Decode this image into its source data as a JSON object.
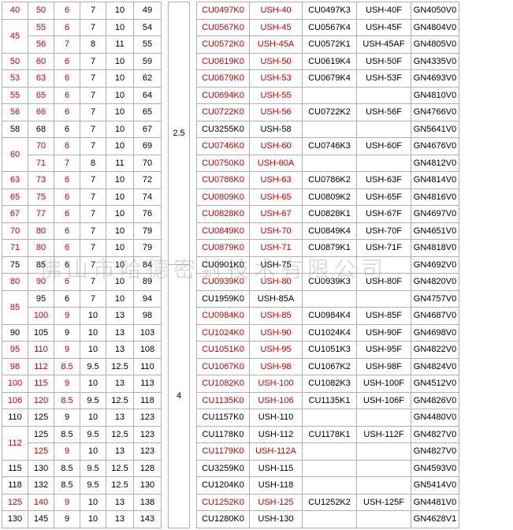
{
  "watermark": "佛山市哈德密封技术有限公司",
  "left_table": {
    "merged0": [
      {
        "start": 0,
        "span": 1,
        "val": "40",
        "red": true
      },
      {
        "start": 1,
        "span": 2,
        "val": "45",
        "red": true
      },
      {
        "start": 3,
        "span": 1,
        "val": "50",
        "red": true
      },
      {
        "start": 4,
        "span": 1,
        "val": "53",
        "red": true
      },
      {
        "start": 5,
        "span": 1,
        "val": "55",
        "red": true
      },
      {
        "start": 6,
        "span": 1,
        "val": "56",
        "red": true
      },
      {
        "start": 7,
        "span": 1,
        "val": "58",
        "red": false
      },
      {
        "start": 8,
        "span": 2,
        "val": "60",
        "red": true
      },
      {
        "start": 10,
        "span": 1,
        "val": "63",
        "red": true
      },
      {
        "start": 11,
        "span": 1,
        "val": "65",
        "red": true
      },
      {
        "start": 12,
        "span": 1,
        "val": "67",
        "red": true
      },
      {
        "start": 13,
        "span": 1,
        "val": "70",
        "red": true
      },
      {
        "start": 14,
        "span": 1,
        "val": "71",
        "red": true
      },
      {
        "start": 15,
        "span": 1,
        "val": "75",
        "red": false
      },
      {
        "start": 16,
        "span": 1,
        "val": "80",
        "red": true
      },
      {
        "start": 17,
        "span": 2,
        "val": "85",
        "red": true
      },
      {
        "start": 19,
        "span": 1,
        "val": "90",
        "red": false
      },
      {
        "start": 20,
        "span": 1,
        "val": "95",
        "red": true
      },
      {
        "start": 21,
        "span": 1,
        "val": "98",
        "red": true
      },
      {
        "start": 22,
        "span": 1,
        "val": "100",
        "red": true
      },
      {
        "start": 23,
        "span": 1,
        "val": "106",
        "red": true
      },
      {
        "start": 24,
        "span": 1,
        "val": "110",
        "red": false
      },
      {
        "start": 25,
        "span": 2,
        "val": "112",
        "red": true
      },
      {
        "start": 27,
        "span": 1,
        "val": "115",
        "red": false
      },
      {
        "start": 28,
        "span": 1,
        "val": "118",
        "red": false
      },
      {
        "start": 29,
        "span": 1,
        "val": "125",
        "red": true
      },
      {
        "start": 30,
        "span": 1,
        "val": "130",
        "red": false
      }
    ],
    "rows": [
      {
        "c1": "50",
        "c1r": true,
        "c2": "6",
        "c2r": true,
        "c3": "7",
        "c4": "10",
        "c5": "49"
      },
      {
        "c1": "55",
        "c1r": true,
        "c2": "6",
        "c2r": true,
        "c3": "7",
        "c4": "10",
        "c5": "54"
      },
      {
        "c1": "56",
        "c1r": true,
        "c2": "7",
        "c2r": true,
        "c3": "8",
        "c4": "11",
        "c5": "55"
      },
      {
        "c1": "60",
        "c1r": true,
        "c2": "6",
        "c2r": true,
        "c3": "7",
        "c4": "10",
        "c5": "59"
      },
      {
        "c1": "63",
        "c1r": true,
        "c2": "6",
        "c2r": true,
        "c3": "7",
        "c4": "10",
        "c5": "62"
      },
      {
        "c1": "65",
        "c1r": true,
        "c2": "6",
        "c2r": true,
        "c3": "7",
        "c4": "10",
        "c5": "64"
      },
      {
        "c1": "66",
        "c1r": true,
        "c2": "6",
        "c2r": true,
        "c3": "7",
        "c4": "10",
        "c5": "65"
      },
      {
        "c1": "68",
        "c1r": false,
        "c2": "6",
        "c2r": false,
        "c3": "7",
        "c4": "10",
        "c5": "67"
      },
      {
        "c1": "70",
        "c1r": true,
        "c2": "6",
        "c2r": true,
        "c3": "7",
        "c4": "10",
        "c5": "69"
      },
      {
        "c1": "71",
        "c1r": true,
        "c2": "7",
        "c2r": true,
        "c3": "8",
        "c4": "11",
        "c5": "70"
      },
      {
        "c1": "73",
        "c1r": true,
        "c2": "6",
        "c2r": true,
        "c3": "7",
        "c4": "10",
        "c5": "72"
      },
      {
        "c1": "75",
        "c1r": true,
        "c2": "6",
        "c2r": true,
        "c3": "7",
        "c4": "10",
        "c5": "74"
      },
      {
        "c1": "77",
        "c1r": true,
        "c2": "6",
        "c2r": true,
        "c3": "7",
        "c4": "10",
        "c5": "76"
      },
      {
        "c1": "80",
        "c1r": true,
        "c2": "6",
        "c2r": true,
        "c3": "7",
        "c4": "10",
        "c5": "79"
      },
      {
        "c1": "80",
        "c1r": true,
        "c2": "6",
        "c2r": true,
        "c3": "7",
        "c4": "10",
        "c5": "79"
      },
      {
        "c1": "85",
        "c1r": false,
        "c2": "6",
        "c2r": false,
        "c3": "7",
        "c4": "10",
        "c5": "84"
      },
      {
        "c1": "90",
        "c1r": true,
        "c2": "6",
        "c2r": true,
        "c3": "7",
        "c4": "10",
        "c5": "89"
      },
      {
        "c1": "95",
        "c1r": false,
        "c2": "6",
        "c2r": false,
        "c3": "7",
        "c4": "10",
        "c5": "94"
      },
      {
        "c1": "100",
        "c1r": true,
        "c2": "9",
        "c2r": true,
        "c3": "10",
        "c4": "13",
        "c5": "98"
      },
      {
        "c1": "105",
        "c1r": false,
        "c2": "9",
        "c2r": false,
        "c3": "10",
        "c4": "13",
        "c5": "103"
      },
      {
        "c1": "110",
        "c1r": true,
        "c2": "9",
        "c2r": true,
        "c3": "10",
        "c4": "13",
        "c5": "108"
      },
      {
        "c1": "112",
        "c1r": true,
        "c2": "8.5",
        "c2r": true,
        "c3": "9.5",
        "c4": "12.5",
        "c5": "110"
      },
      {
        "c1": "115",
        "c1r": true,
        "c2": "9",
        "c2r": true,
        "c3": "10",
        "c4": "13",
        "c5": "113"
      },
      {
        "c1": "120",
        "c1r": true,
        "c2": "8.5",
        "c2r": true,
        "c3": "9.5",
        "c4": "12.5",
        "c5": "118"
      },
      {
        "c1": "125",
        "c1r": false,
        "c2": "9",
        "c2r": false,
        "c3": "10",
        "c4": "13",
        "c5": "123"
      },
      {
        "c1": "125",
        "c1r": false,
        "c2": "8.5",
        "c2r": false,
        "c3": "9.5",
        "c4": "12.5",
        "c5": "123"
      },
      {
        "c1": "125",
        "c1r": true,
        "c2": "9",
        "c2r": true,
        "c3": "10",
        "c4": "13",
        "c5": "123"
      },
      {
        "c1": "130",
        "c1r": false,
        "c2": "8.5",
        "c2r": false,
        "c3": "9.5",
        "c4": "12.5",
        "c5": "128"
      },
      {
        "c1": "132",
        "c1r": false,
        "c2": "8.5",
        "c2r": false,
        "c3": "9.5",
        "c4": "12.5",
        "c5": "130"
      },
      {
        "c1": "140",
        "c1r": true,
        "c2": "9",
        "c2r": true,
        "c3": "10",
        "c4": "13",
        "c5": "138"
      },
      {
        "c1": "145",
        "c1r": false,
        "c2": "9",
        "c2r": false,
        "c3": "10",
        "c4": "13",
        "c5": "143"
      }
    ]
  },
  "mid_col": {
    "cells": [
      {
        "start": 0,
        "span": 8,
        "val": "2.5"
      },
      {
        "start": 8,
        "span": 23,
        "val": "4"
      }
    ]
  },
  "right_table": {
    "rows": [
      {
        "r": true,
        "c0": "CU0497K0",
        "c1": "USH-40",
        "c2": "CU0497K3",
        "c3": "USH-40F",
        "c4": "GN4050V0"
      },
      {
        "r": true,
        "c0": "CU0567K0",
        "c1": "USH-45",
        "c2": "CU0567K4",
        "c3": "USH-45F",
        "c4": "GN4804V0"
      },
      {
        "r": true,
        "c0": "CU0572K0",
        "c1": "USH-45A",
        "c2": "CU0572K1",
        "c3": "USH-45AF",
        "c4": "GN4805V0"
      },
      {
        "r": true,
        "c0": "CU0619K0",
        "c1": "USH-50",
        "c2": "CU0619K4",
        "c3": "USH-50F",
        "c4": "GN4335V0"
      },
      {
        "r": true,
        "c0": "CU0679K0",
        "c1": "USH-53",
        "c2": "CU0679K4",
        "c3": "USH-53F",
        "c4": "GN4693V0"
      },
      {
        "r": true,
        "c0": "CU0694K0",
        "c1": "USH-55",
        "c2": "",
        "c3": "",
        "c4": "GN4810V0"
      },
      {
        "r": true,
        "c0": "CU0722K0",
        "c1": "USH-56",
        "c2": "CU0722K2",
        "c3": "USH-56F",
        "c4": "GN4766V0"
      },
      {
        "r": false,
        "c0": "CU3255K0",
        "c1": "USH-58",
        "c2": "",
        "c3": "",
        "c4": "GN5641V0"
      },
      {
        "r": true,
        "c0": "CU0746K0",
        "c1": "USH-60",
        "c2": "CU0746K3",
        "c3": "USH-60F",
        "c4": "GN4676V0"
      },
      {
        "r": true,
        "c0": "CU0750K0",
        "c1": "USH-60A",
        "c2": "",
        "c3": "",
        "c4": "GN4812V0"
      },
      {
        "r": true,
        "c0": "CU0786K0",
        "c1": "USH-63",
        "c2": "CU0786K2",
        "c3": "USH-63F",
        "c4": "GN4814V0"
      },
      {
        "r": true,
        "c0": "CU0809K0",
        "c1": "USH-65",
        "c2": "CU0809K2",
        "c3": "USH-65F",
        "c4": "GN4816V0"
      },
      {
        "r": true,
        "c0": "CU0828K0",
        "c1": "USH-67",
        "c2": "CU0828K1",
        "c3": "USH-67F",
        "c4": "GN4697V0"
      },
      {
        "r": true,
        "c0": "CU0849K0",
        "c1": "USH-70",
        "c2": "CU0849K4",
        "c3": "USH-70F",
        "c4": "GN4651V0"
      },
      {
        "r": true,
        "c0": "CU0879K0",
        "c1": "USH-71",
        "c2": "CU0879K1",
        "c3": "USH-71F",
        "c4": "GN4818V0"
      },
      {
        "r": false,
        "c0": "CU0901K0",
        "c1": "USH-75",
        "c2": "",
        "c3": "",
        "c4": "GN4692V0"
      },
      {
        "r": true,
        "c0": "CU0939K0",
        "c1": "USH-80",
        "c2": "CU0939K3",
        "c3": "USH-80F",
        "c4": "GN4820V0"
      },
      {
        "r": false,
        "c0": "CU1959K0",
        "c1": "USH-85A",
        "c2": "",
        "c3": "",
        "c4": "GN4757V0"
      },
      {
        "r": true,
        "c0": "CU0984K0",
        "c1": "USH-85",
        "c2": "CU0984K4",
        "c3": "USH-85F",
        "c4": "GN4687V0"
      },
      {
        "r": true,
        "c0": "CU1024K0",
        "c1": "USH-90",
        "c2": "CU1024K4",
        "c3": "USH-90F",
        "c4": "GN4698V0"
      },
      {
        "r": true,
        "c0": "CU1051K0",
        "c1": "USH-95",
        "c2": "CU1051K3",
        "c3": "USH-95F",
        "c4": "GN4822V0"
      },
      {
        "r": true,
        "c0": "CU1067K0",
        "c1": "USH-98",
        "c2": "CU1067K2",
        "c3": "USH-98F",
        "c4": "GN4824V0"
      },
      {
        "r": true,
        "c0": "CU1082K0",
        "c1": "USH-100",
        "c2": "CU1082K3",
        "c3": "USH-100F",
        "c4": "GN4512V0"
      },
      {
        "r": true,
        "c0": "CU1135K0",
        "c1": "USH-106",
        "c2": "CU1135K1",
        "c3": "USH-106F",
        "c4": "GN4826V0"
      },
      {
        "r": false,
        "c0": "CU1157K0",
        "c1": "USH-110",
        "c2": "",
        "c3": "",
        "c4": "GN4480V0"
      },
      {
        "r": false,
        "c0": "CU1178K0",
        "c1": "USH-112",
        "c2": "CU1178K1",
        "c3": "USH-112F",
        "c4": "GN4827V0"
      },
      {
        "r": true,
        "c0": "CU1179K0",
        "c1": "USH-112A",
        "c2": "",
        "c3": "",
        "c4": "GN4827V0"
      },
      {
        "r": false,
        "c0": "CU3259K0",
        "c1": "USH-115",
        "c2": "",
        "c3": "",
        "c4": "GN4593V0"
      },
      {
        "r": false,
        "c0": "CU1204K0",
        "c1": "USH-118",
        "c2": "",
        "c3": "",
        "c4": "GN5414V0"
      },
      {
        "r": true,
        "c0": "CU1252K0",
        "c1": "USH-125",
        "c2": "CU1252K2",
        "c3": "USH-125F",
        "c4": "GN4481V0"
      },
      {
        "r": false,
        "c0": "CU1280K0",
        "c1": "USH-130",
        "c2": "",
        "c3": "",
        "c4": "GN4628V1"
      }
    ]
  }
}
